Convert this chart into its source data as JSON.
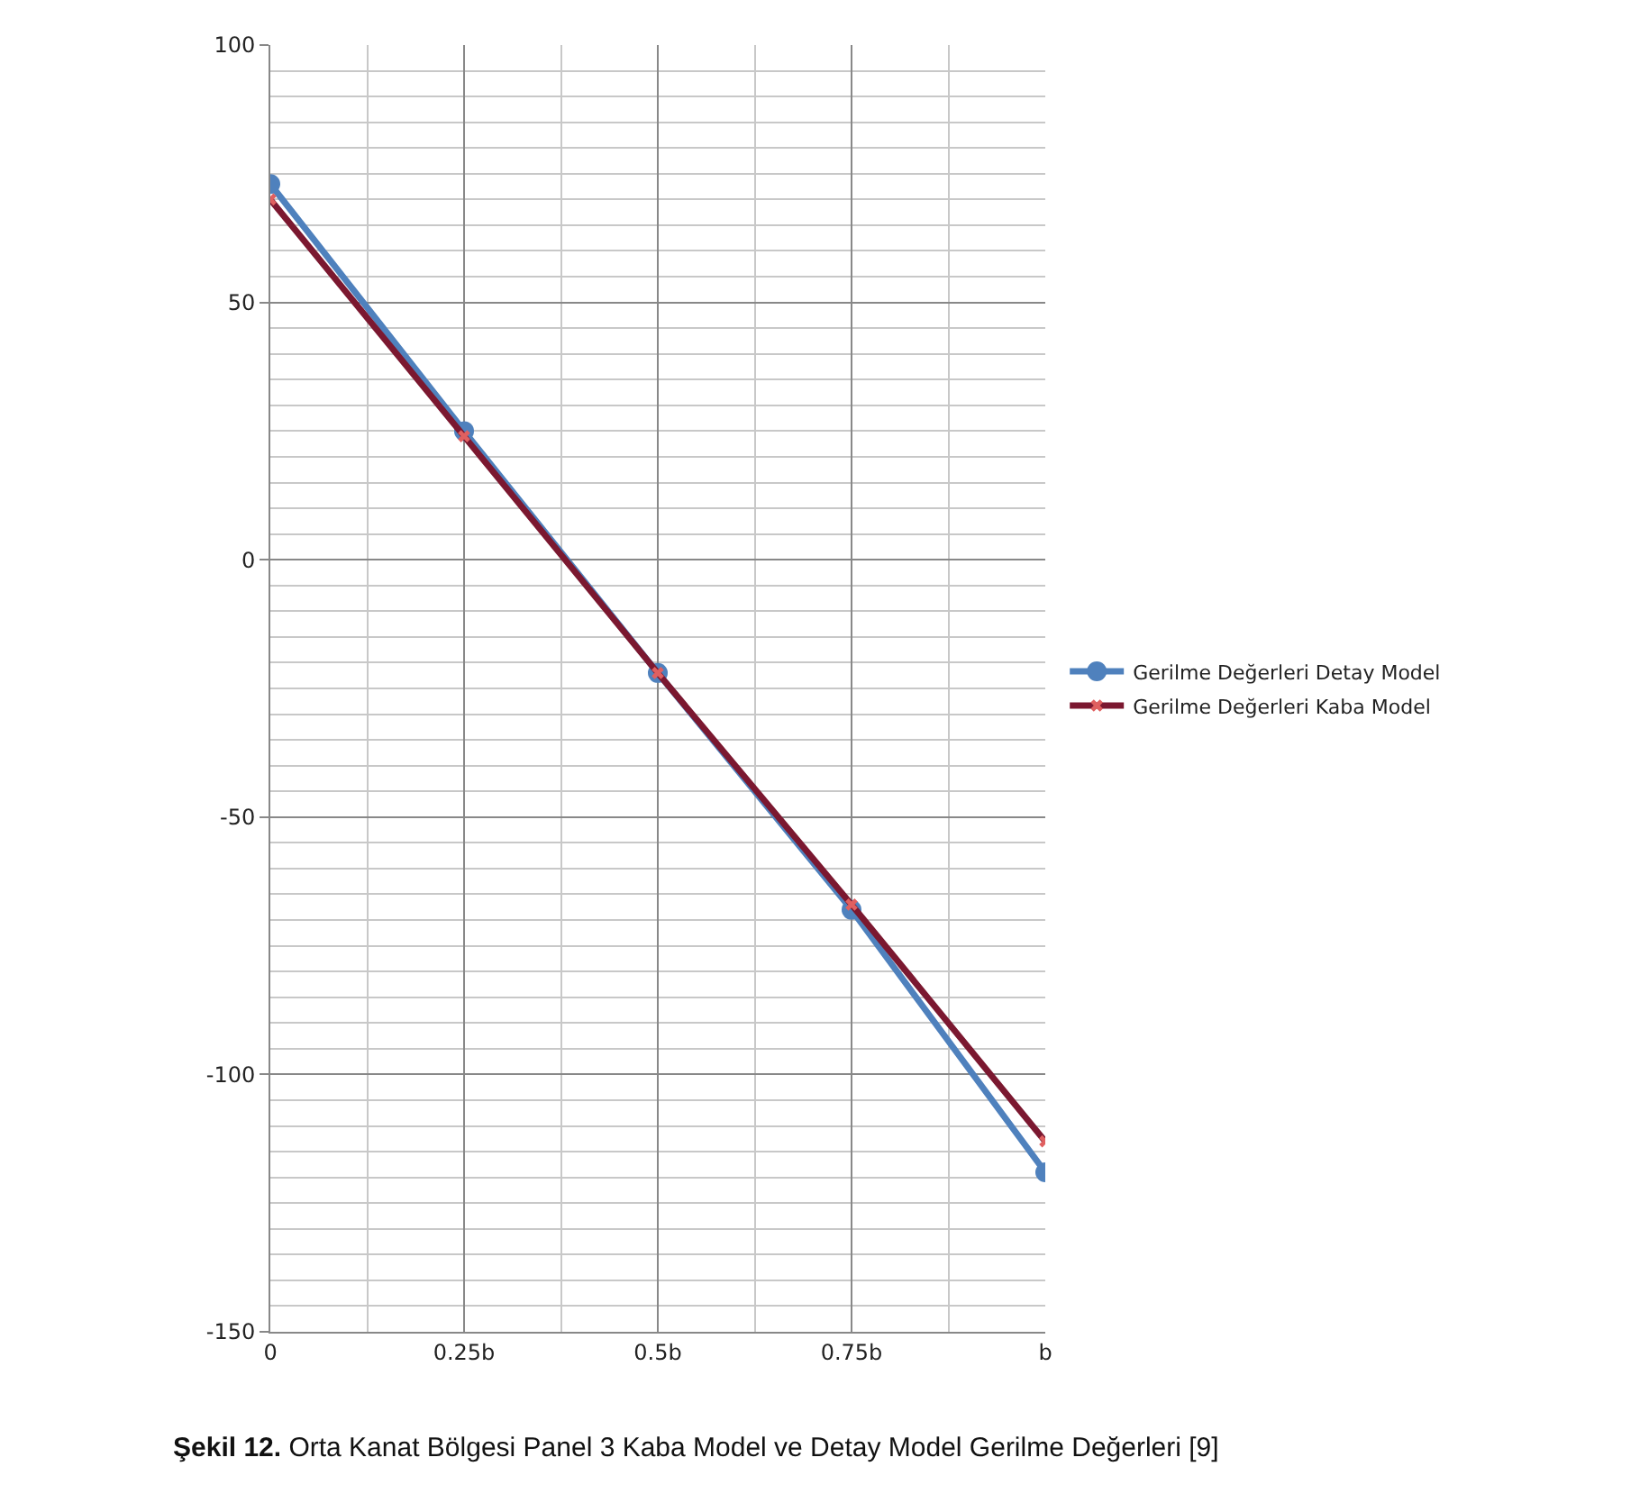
{
  "chart_data": {
    "type": "line",
    "x": [
      0,
      0.25,
      0.5,
      0.75,
      1
    ],
    "series": [
      {
        "name": "Gerilme Değerleri Detay Model",
        "color": "#4f81bd",
        "values": [
          73,
          25,
          -22,
          -68,
          -119
        ],
        "marker": "circle"
      },
      {
        "name": "Gerilme Değerleri Kaba Model",
        "color": "#7b1830",
        "values": [
          70,
          24,
          -22,
          -67,
          -113
        ],
        "marker": "cross"
      }
    ],
    "xlim": [
      0,
      1
    ],
    "xticks": [
      0,
      {
        "value": 0.25,
        "label": "0.25b"
      },
      {
        "value": 0.5,
        "label": "0.5b"
      },
      {
        "value": 0.75,
        "label": "0.75b"
      },
      {
        "value": 1,
        "label": "b"
      }
    ],
    "ylim": [
      -150,
      100
    ],
    "yticks": [
      -150,
      -100,
      -50,
      0,
      50,
      100
    ],
    "grid": true,
    "legend": "right",
    "line_style": "solid",
    "annotations": [
      "Şekil 12. Orta Kanat Bölgesi Panel 3 Kaba Model ve Detay Model Gerilme Değerleri [9]"
    ]
  }
}
